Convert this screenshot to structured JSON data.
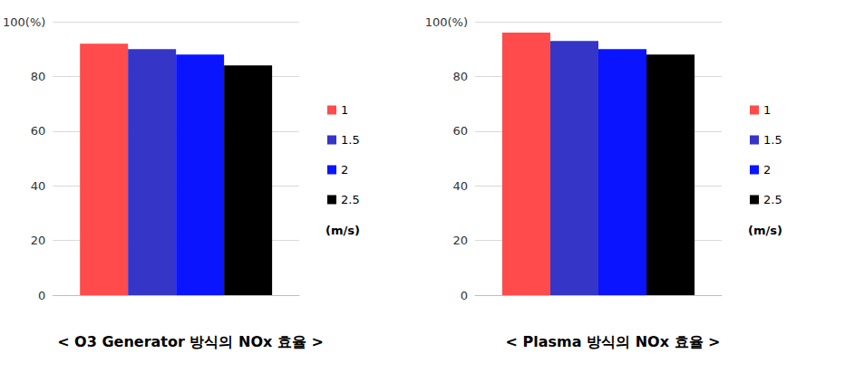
{
  "chart_data": [
    {
      "type": "bar",
      "title": "< O3 Generator 방식의 NOx 효율 >",
      "categories": [
        null
      ],
      "series": [
        {
          "name": "1",
          "color": "#ff4b4b",
          "values": [
            92
          ]
        },
        {
          "name": "1.5",
          "color": "#3535c8",
          "values": [
            90
          ]
        },
        {
          "name": "2",
          "color": "#0a14ff",
          "values": [
            88
          ]
        },
        {
          "name": "2.5",
          "color": "#000000",
          "values": [
            84
          ]
        }
      ],
      "legend_title": "(m/s)",
      "ylim": [
        0,
        100
      ],
      "yticks": [
        0,
        20,
        40,
        60,
        80,
        {
          "value": 100,
          "label": "100(%)"
        }
      ],
      "grid": true,
      "legend": "right"
    },
    {
      "type": "bar",
      "title": "< Plasma 방식의 NOx 효율 >",
      "categories": [
        null
      ],
      "series": [
        {
          "name": "1",
          "color": "#ff4b4b",
          "values": [
            96
          ]
        },
        {
          "name": "1.5",
          "color": "#3535c8",
          "values": [
            93
          ]
        },
        {
          "name": "2",
          "color": "#0a14ff",
          "values": [
            90
          ]
        },
        {
          "name": "2.5",
          "color": "#000000",
          "values": [
            88
          ]
        }
      ],
      "legend_title": "(m/s)",
      "ylim": [
        0,
        100
      ],
      "yticks": [
        0,
        20,
        40,
        60,
        80,
        {
          "value": 100,
          "label": "100(%)"
        }
      ],
      "grid": true,
      "legend": "right"
    }
  ]
}
